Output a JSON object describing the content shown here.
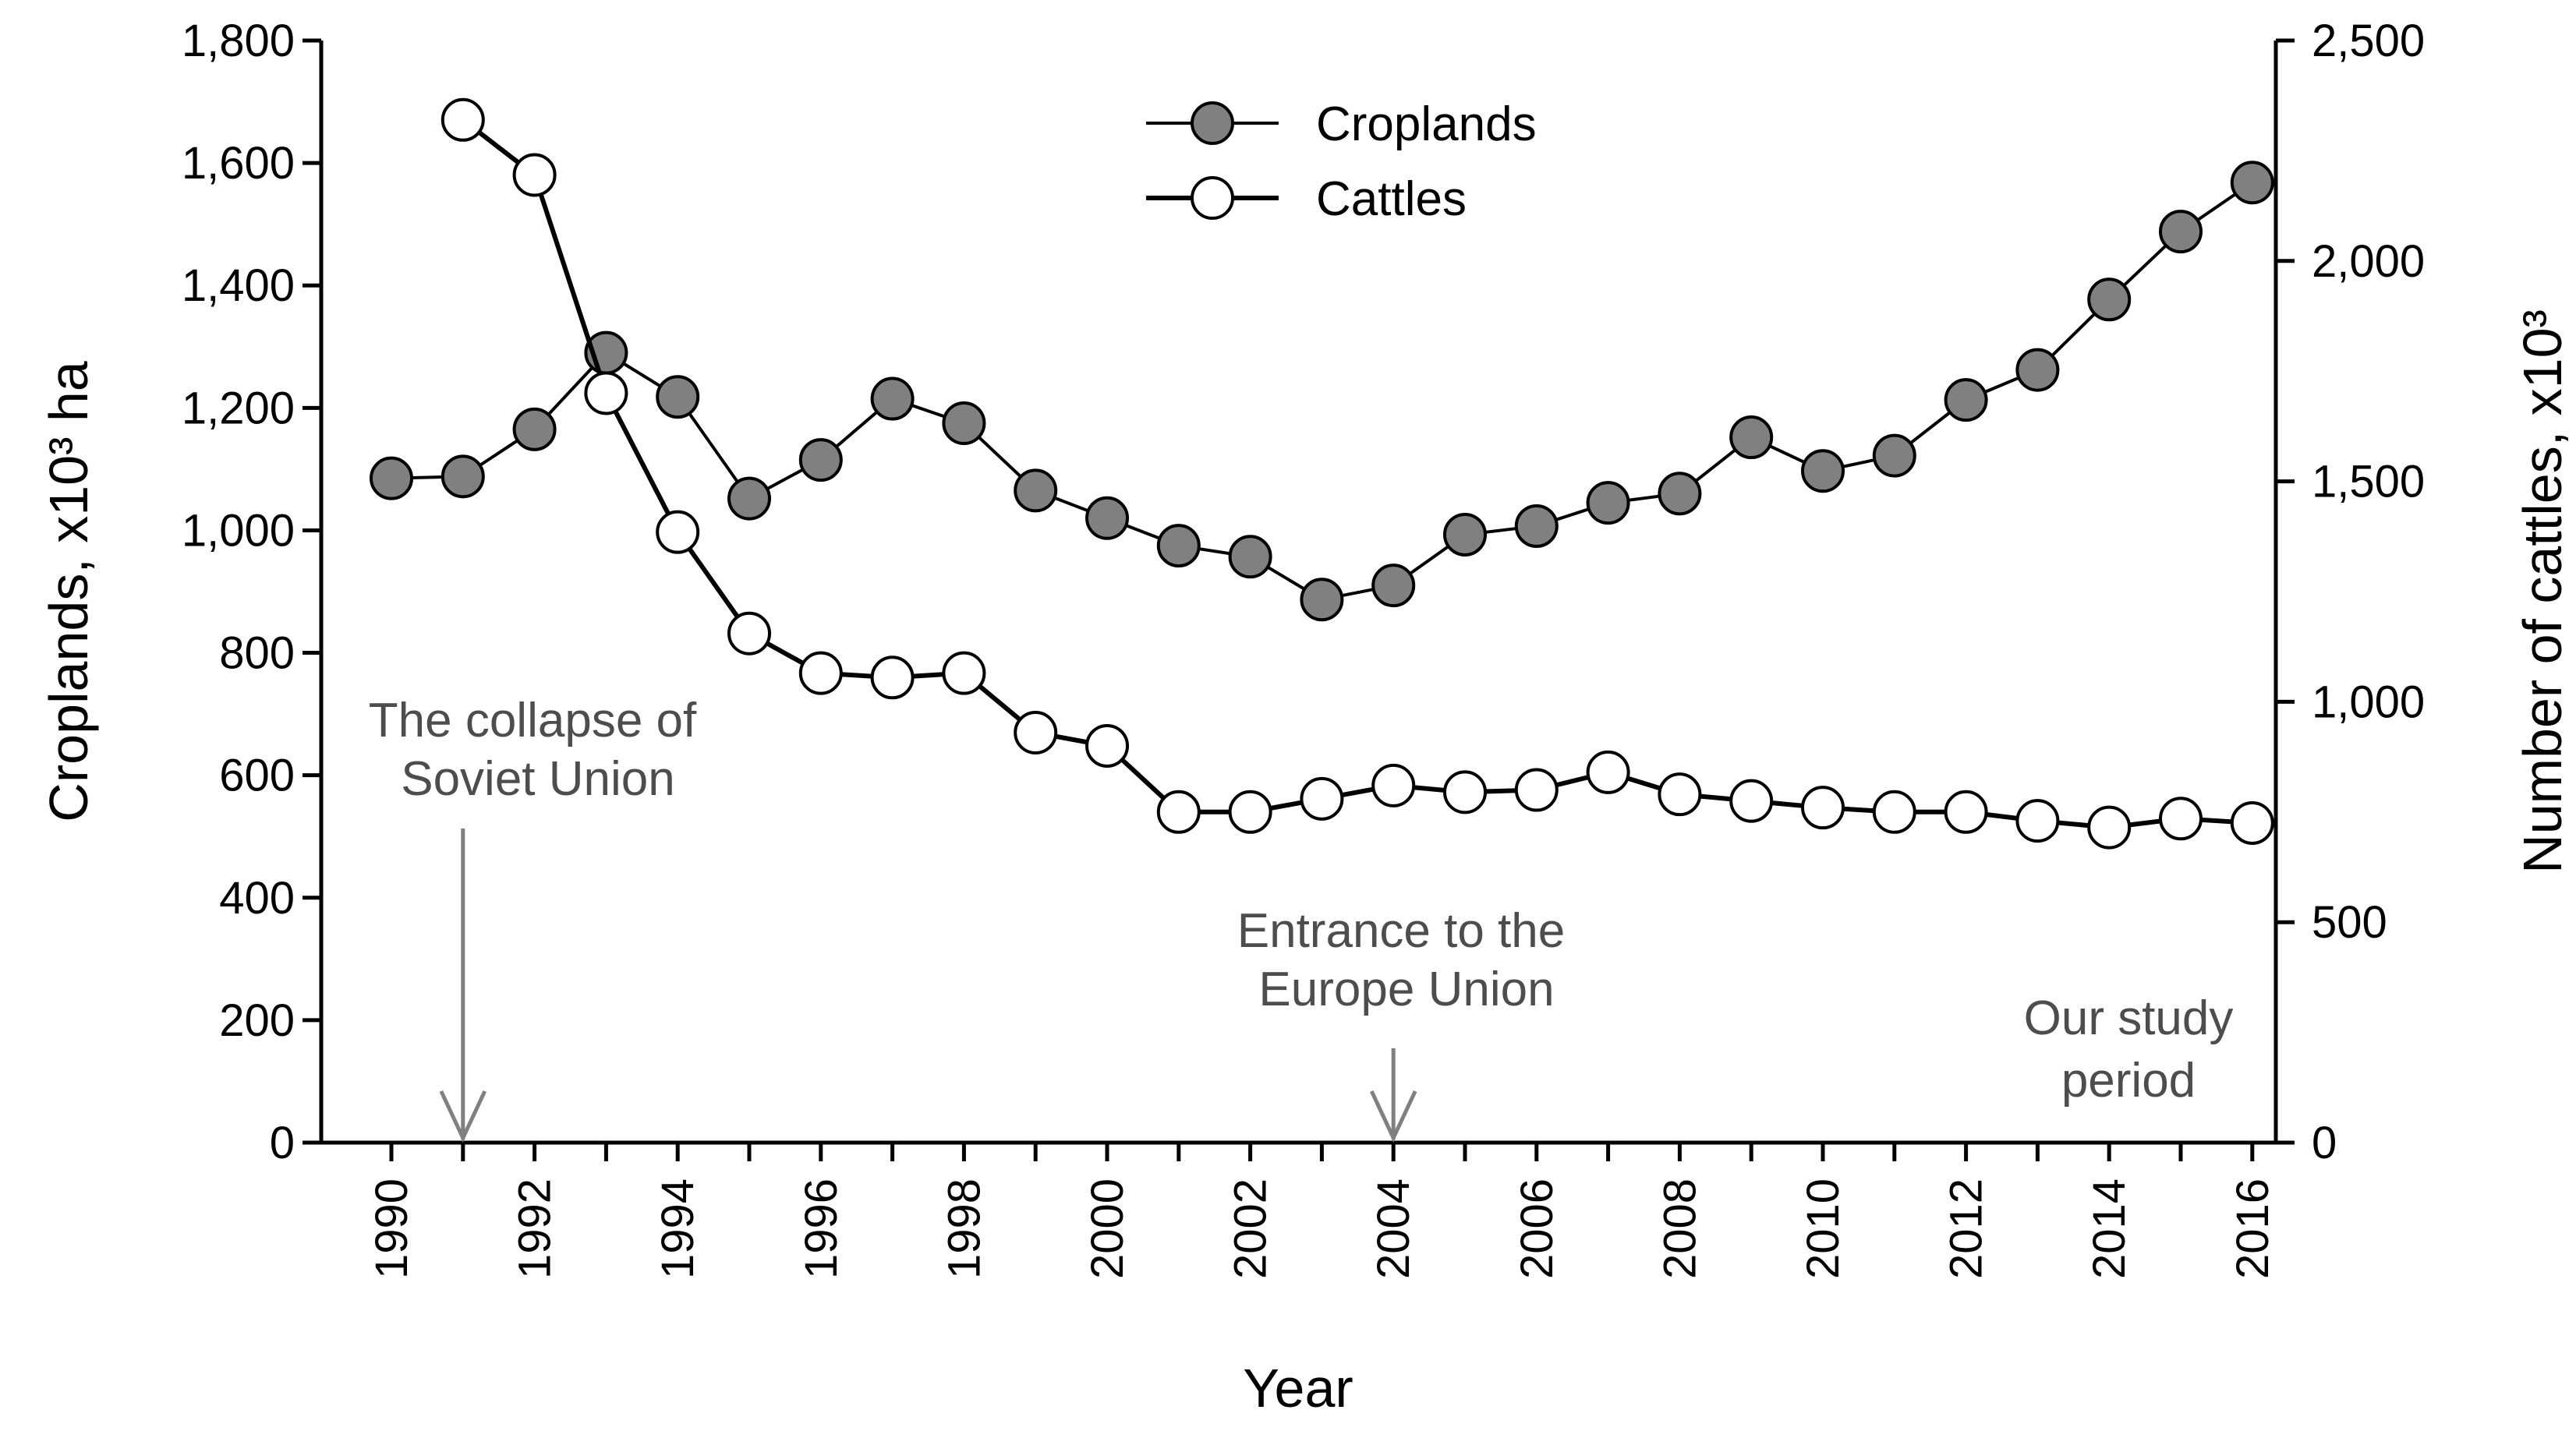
{
  "chart_data": {
    "type": "line",
    "xlabel": "Year",
    "ylabel_left": "Croplands, x10³ ha",
    "ylabel_right": "Number of cattles, x10³",
    "xlim": [
      1989,
      2016.3
    ],
    "ylim_left": [
      0,
      1800
    ],
    "ylim_right": [
      0,
      2500
    ],
    "x_ticks": [
      1990,
      1992,
      1994,
      1996,
      1998,
      2000,
      2002,
      2004,
      2006,
      2008,
      2010,
      2012,
      2014,
      2016
    ],
    "y_ticks_left": [
      0,
      200,
      400,
      600,
      800,
      1000,
      1200,
      1400,
      1600,
      1800
    ],
    "y_tick_labels_left": [
      "0",
      "200",
      "400",
      "600",
      "800",
      "1,000",
      "1,200",
      "1,400",
      "1,600",
      "1,800"
    ],
    "y_ticks_right": [
      0,
      500,
      1000,
      1500,
      2000,
      2500
    ],
    "y_tick_labels_right": [
      "0",
      "500",
      "1,000",
      "1,500",
      "2,000",
      "2,500"
    ],
    "grid": false,
    "legend_position": "top-center",
    "series": [
      {
        "name": "Croplands",
        "axis": "left",
        "marker": "filled-circle",
        "marker_fill": "#808080",
        "x": [
          1990,
          1991,
          1992,
          1993,
          1994,
          1995,
          1996,
          1997,
          1998,
          1999,
          2000,
          2001,
          2002,
          2003,
          2004,
          2005,
          2006,
          2007,
          2008,
          2009,
          2010,
          2011,
          2012,
          2013,
          2014,
          2015,
          2016
        ],
        "values": [
          1085,
          1088,
          1165,
          1290,
          1218,
          1052,
          1115,
          1215,
          1175,
          1065,
          1020,
          975,
          957,
          887,
          910,
          993,
          1007,
          1045,
          1060,
          1152,
          1097,
          1122,
          1213,
          1262,
          1377,
          1488,
          1568
        ]
      },
      {
        "name": "Cattles",
        "axis": "right",
        "marker": "open-circle",
        "marker_fill": "#ffffff",
        "x": [
          1991,
          1992,
          1993,
          1994,
          1995,
          1996,
          1997,
          1998,
          1999,
          2000,
          2001,
          2002,
          2003,
          2004,
          2005,
          2006,
          2007,
          2008,
          2009,
          2010,
          2011,
          2012,
          2013,
          2014,
          2015,
          2016
        ],
        "values": [
          2320,
          2195,
          1700,
          1385,
          1155,
          1065,
          1055,
          1065,
          930,
          900,
          750,
          750,
          780,
          810,
          795,
          800,
          840,
          790,
          775,
          760,
          750,
          750,
          730,
          715,
          735,
          725
        ]
      }
    ],
    "annotations": [
      {
        "key": "collapse",
        "lines": [
          "The collapse of",
          "Soviet Union"
        ],
        "year": 1991
      },
      {
        "key": "eu",
        "lines": [
          "Entrance to the",
          "Europe Union"
        ],
        "year": 2004
      },
      {
        "key": "study",
        "lines": [
          "Our study",
          "period"
        ],
        "year": null
      }
    ],
    "colors": {
      "axis": "#000000",
      "line": "#000000",
      "cropland_fill": "#808080",
      "cattle_fill": "#ffffff",
      "annotation_text": "#4d4d4d",
      "arrow": "#808080"
    }
  }
}
